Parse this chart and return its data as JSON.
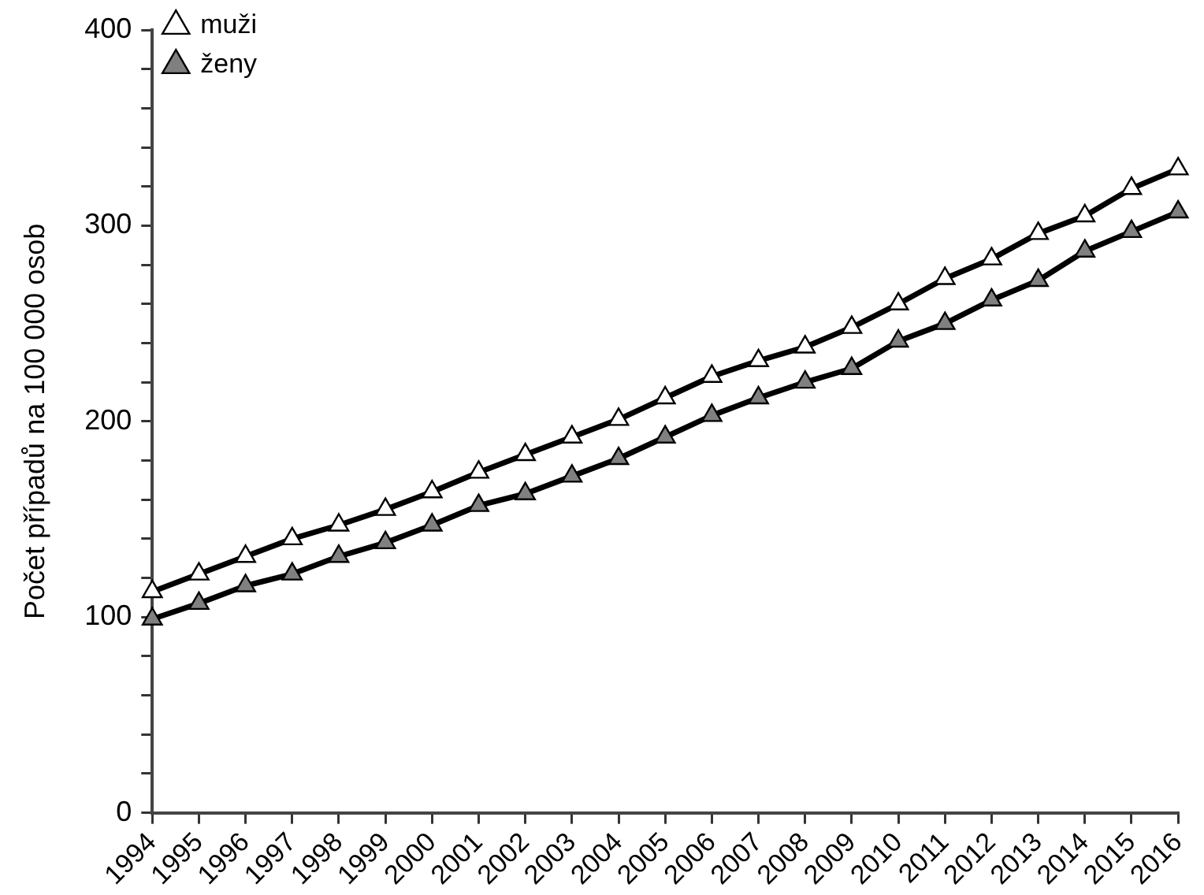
{
  "chart_data": {
    "type": "line",
    "ylabel": "Počet případů na 100 000 osob",
    "categories": [
      "1994",
      "1995",
      "1996",
      "1997",
      "1998",
      "1999",
      "2000",
      "2001",
      "2002",
      "2003",
      "2004",
      "2005",
      "2006",
      "2007",
      "2008",
      "2009",
      "2010",
      "2011",
      "2012",
      "2013",
      "2014",
      "2015",
      "2016"
    ],
    "series": [
      {
        "name": "muži",
        "color": "#ffffff",
        "values": [
          113,
          122,
          131,
          140,
          147,
          155,
          164,
          174,
          183,
          192,
          201,
          212,
          223,
          231,
          238,
          248,
          260,
          273,
          283,
          296,
          305,
          319,
          329
        ]
      },
      {
        "name": "ženy",
        "color": "#808080",
        "values": [
          99,
          107,
          116,
          122,
          131,
          138,
          147,
          157,
          163,
          172,
          181,
          192,
          203,
          212,
          220,
          227,
          241,
          250,
          262,
          272,
          287,
          297,
          307
        ]
      }
    ],
    "ylim": [
      0,
      400
    ],
    "yticks": [
      0,
      {
        "value": 20,
        "label": null
      },
      {
        "value": 40,
        "label": null
      },
      {
        "value": 60,
        "label": null
      },
      {
        "value": 80,
        "label": null
      },
      100,
      {
        "value": 120,
        "label": null
      },
      {
        "value": 140,
        "label": null
      },
      {
        "value": 160,
        "label": null
      },
      {
        "value": 180,
        "label": null
      },
      200,
      {
        "value": 220,
        "label": null
      },
      {
        "value": 240,
        "label": null
      },
      {
        "value": 260,
        "label": null
      },
      {
        "value": 280,
        "label": null
      },
      300,
      {
        "value": 320,
        "label": null
      },
      {
        "value": 340,
        "label": null
      },
      {
        "value": 360,
        "label": null
      },
      {
        "value": 380,
        "label": null
      },
      400
    ],
    "grid": false,
    "legend": "top left",
    "marker": "triangle",
    "line_style": "solid"
  }
}
